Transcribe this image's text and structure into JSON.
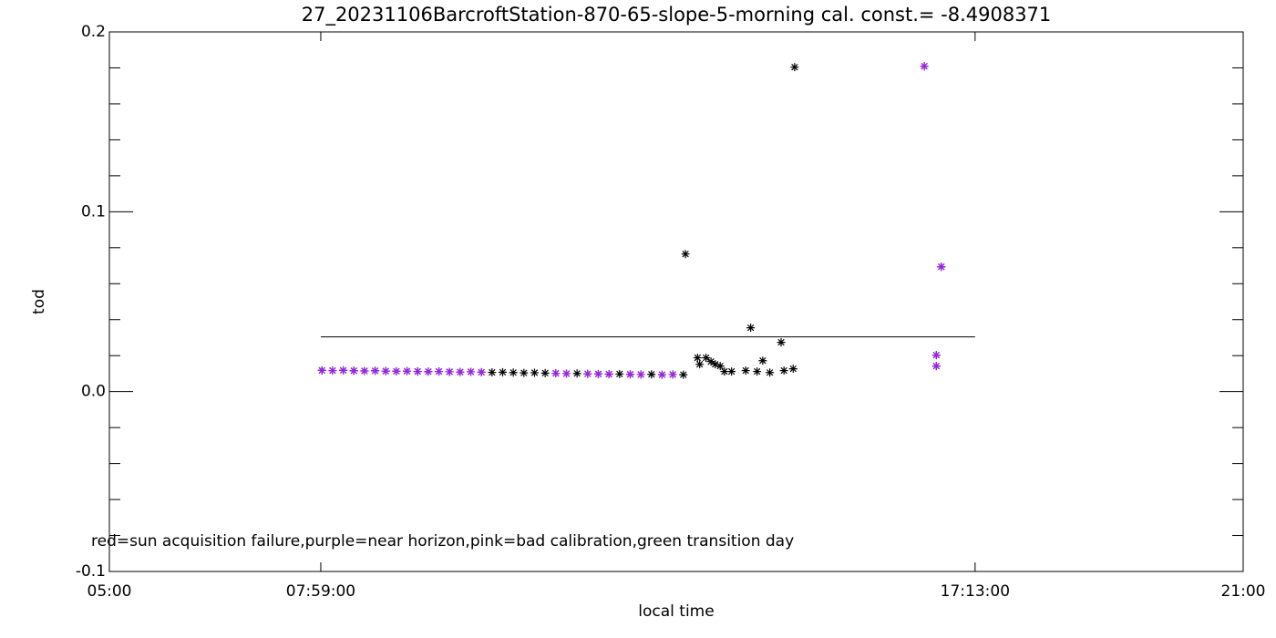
{
  "chart_data": {
    "type": "scatter",
    "title": "27_20231106BarcroftStation-870-65-slope-5-morning cal. const.= -8.4908371",
    "x_label": "local time",
    "y_label": "tod",
    "annotation": "red=sun acquisition failure,purple=near horizon,pink=bad calibration,green transition day",
    "xlim": [
      5,
      21
    ],
    "xticks": [
      {
        "value": 5,
        "label": "05:00"
      },
      {
        "value": 7.9833,
        "label": "07:59:00"
      },
      {
        "value": 17.2167,
        "label": "17:13:00"
      },
      {
        "value": 21,
        "label": "21:00"
      }
    ],
    "ylim": [
      -0.1,
      0.2
    ],
    "yticks": [
      -0.1,
      {
        "value": 0,
        "label": "0.0"
      },
      0.1,
      0.2
    ],
    "reference_line": {
      "x": [
        7.9833,
        17.2167
      ],
      "y": 0.0304,
      "color": "#000000"
    },
    "series": [
      {
        "color": "#000000",
        "x": [
          8.0,
          8.15,
          8.3,
          8.45,
          8.6,
          8.75,
          8.9,
          9.05,
          9.2,
          9.35,
          9.5,
          9.65,
          9.8,
          9.95,
          10.1,
          10.25,
          10.4,
          10.55,
          10.7,
          10.85,
          11.0,
          11.15,
          11.3,
          11.45,
          11.6,
          11.75,
          11.9,
          12.05,
          12.2,
          12.35,
          12.5,
          12.65,
          12.8,
          12.95,
          13.1,
          13.13,
          13.3,
          13.33,
          13.42,
          13.49,
          13.55,
          13.62,
          13.68,
          13.78,
          13.98,
          14.05,
          14.14,
          14.22,
          14.32,
          14.48,
          14.52,
          14.65,
          14.67,
          16.5,
          16.67,
          16.67,
          16.74
        ],
        "values": [
          0.0118,
          0.0117,
          0.0118,
          0.0116,
          0.0115,
          0.0116,
          0.0114,
          0.0113,
          0.0114,
          0.0112,
          0.0111,
          0.0112,
          0.011,
          0.0109,
          0.011,
          0.0108,
          0.0107,
          0.0108,
          0.0106,
          0.0104,
          0.0105,
          0.0103,
          0.0102,
          0.01,
          0.0101,
          0.0099,
          0.0098,
          0.0097,
          0.0098,
          0.0096,
          0.0095,
          0.0096,
          0.0094,
          0.0095,
          0.0094,
          0.0765,
          0.0188,
          0.0152,
          0.0188,
          0.0167,
          0.0152,
          0.0142,
          0.0112,
          0.0112,
          0.0117,
          0.0355,
          0.0112,
          0.0172,
          0.0106,
          0.0274,
          0.0117,
          0.0127,
          0.1804,
          0.1809,
          0.0203,
          0.0142,
          0.0694
        ]
      },
      {
        "color": "#a020f0",
        "x": [
          8.0,
          8.15,
          8.3,
          8.45,
          8.6,
          8.75,
          8.9,
          9.05,
          9.2,
          9.35,
          9.5,
          9.65,
          9.8,
          9.95,
          10.1,
          10.25,
          11.3,
          11.45,
          11.75,
          11.9,
          12.05,
          12.35,
          12.5,
          12.8,
          12.95,
          16.5,
          16.67,
          16.67,
          16.74
        ],
        "values": [
          0.0118,
          0.0117,
          0.0118,
          0.0116,
          0.0115,
          0.0116,
          0.0114,
          0.0113,
          0.0114,
          0.0112,
          0.0111,
          0.0112,
          0.011,
          0.0109,
          0.011,
          0.0108,
          0.0102,
          0.01,
          0.0099,
          0.0098,
          0.0097,
          0.0096,
          0.0095,
          0.0094,
          0.0095,
          0.1809,
          0.0203,
          0.0142,
          0.0694
        ]
      }
    ]
  }
}
